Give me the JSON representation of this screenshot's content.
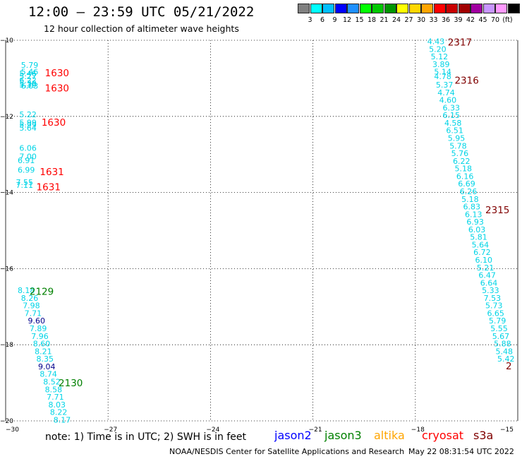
{
  "header": {
    "title": "12:00 – 23:59 UTC 05/21/2022",
    "subtitle": "12 hour collection of altimeter wave heights"
  },
  "colorbar": {
    "labels": [
      "3",
      "6",
      "9",
      "12",
      "15",
      "18",
      "21",
      "24",
      "27",
      "30",
      "33",
      "36",
      "39",
      "42",
      "45",
      "70",
      "(ft)"
    ],
    "colors": [
      "#808080",
      "#00ffff",
      "#00bfff",
      "#0000ff",
      "#1e90ff",
      "#00ff00",
      "#00c800",
      "#009600",
      "#ffff00",
      "#ffd700",
      "#ffa500",
      "#ff0000",
      "#c80000",
      "#a00000",
      "#a000a0",
      "#c896ff",
      "#ff99ff",
      "#000000"
    ]
  },
  "axes": {
    "x_labels": [
      "−30",
      "−27",
      "−24",
      "−21",
      "−18",
      "−15"
    ],
    "y_labels": [
      "−10",
      "−12",
      "−14",
      "−16",
      "−18",
      "−20"
    ]
  },
  "chart_data": {
    "type": "scatter",
    "x_range": [
      -30,
      -15
    ],
    "y_range": [
      -20,
      -10
    ],
    "series": [
      {
        "satellite": "cryosat",
        "color": "#00d4e6",
        "points": [
          {
            "x": -29.55,
            "y": -10.65,
            "v": "5.79"
          },
          {
            "x": -29.55,
            "y": -10.83,
            "v": "5.46"
          },
          {
            "x": -29.6,
            "y": -10.87,
            "v": "5.46"
          },
          {
            "x": -29.6,
            "y": -10.95,
            "v": "5.27"
          },
          {
            "x": -29.6,
            "y": -11.05,
            "v": "6.22"
          },
          {
            "x": -29.6,
            "y": -11.13,
            "v": "5.39"
          },
          {
            "x": -29.6,
            "y": -11.17,
            "v": "5.39"
          },
          {
            "x": -29.55,
            "y": -11.2,
            "v": "6.03"
          },
          {
            "x": -29.6,
            "y": -11.95,
            "v": "5.22"
          },
          {
            "x": -29.6,
            "y": -12.16,
            "v": "5.99"
          },
          {
            "x": -29.6,
            "y": -12.22,
            "v": "5.99"
          },
          {
            "x": -29.6,
            "y": -12.3,
            "v": "5.64"
          },
          {
            "x": -29.6,
            "y": -12.83,
            "v": "6.06"
          },
          {
            "x": -29.6,
            "y": -13.05,
            "v": "7.00"
          },
          {
            "x": -29.65,
            "y": -13.15,
            "v": "6.91"
          },
          {
            "x": -29.65,
            "y": -13.4,
            "v": "6.99"
          },
          {
            "x": -29.7,
            "y": -13.73,
            "v": "7.55"
          },
          {
            "x": -29.7,
            "y": -13.8,
            "v": "7.11"
          }
        ]
      },
      {
        "satellite": "jason3",
        "color": "#00d4e6",
        "points": [
          {
            "x": -29.65,
            "y": -16.57,
            "v": "8.18"
          },
          {
            "x": -29.55,
            "y": -16.77,
            "v": "8.26"
          },
          {
            "x": -29.5,
            "y": -16.97,
            "v": "7.98"
          },
          {
            "x": -29.45,
            "y": -17.17,
            "v": "7.71"
          },
          {
            "x": -29.35,
            "y": -17.37,
            "v": "9.60",
            "color": "#00008b"
          },
          {
            "x": -29.3,
            "y": -17.57,
            "v": "7.89"
          },
          {
            "x": -29.25,
            "y": -17.77,
            "v": "7.96"
          },
          {
            "x": -29.2,
            "y": -17.97,
            "v": "8.60"
          },
          {
            "x": -29.15,
            "y": -18.17,
            "v": "8.21"
          },
          {
            "x": -29.1,
            "y": -18.37,
            "v": "8.35"
          },
          {
            "x": -29.05,
            "y": -18.57,
            "v": "9.04",
            "color": "#00008b"
          },
          {
            "x": -29.0,
            "y": -18.77,
            "v": "8.74"
          },
          {
            "x": -28.9,
            "y": -18.97,
            "v": "8.52"
          },
          {
            "x": -28.85,
            "y": -19.17,
            "v": "8.58"
          },
          {
            "x": -28.8,
            "y": -19.37,
            "v": "7.71"
          },
          {
            "x": -28.75,
            "y": -19.57,
            "v": "8.03"
          },
          {
            "x": -28.7,
            "y": -19.77,
            "v": "8.22"
          },
          {
            "x": -28.6,
            "y": -19.97,
            "v": "8.17"
          }
        ]
      },
      {
        "satellite": "s3a",
        "color": "#00d4e6",
        "points": [
          {
            "x": -17.65,
            "y": -10.03,
            "v": "4.43"
          },
          {
            "x": -17.6,
            "y": -10.23,
            "v": "5.20"
          },
          {
            "x": -17.55,
            "y": -10.43,
            "v": "5.12"
          },
          {
            "x": -17.5,
            "y": -10.63,
            "v": "3.89"
          },
          {
            "x": -17.45,
            "y": -10.83,
            "v": "5.14"
          },
          {
            "x": -17.45,
            "y": -10.95,
            "v": "4.78"
          },
          {
            "x": -17.4,
            "y": -11.17,
            "v": "5.37"
          },
          {
            "x": -17.35,
            "y": -11.37,
            "v": "4.74"
          },
          {
            "x": -17.3,
            "y": -11.57,
            "v": "4.60"
          },
          {
            "x": -17.2,
            "y": -11.77,
            "v": "6.33"
          },
          {
            "x": -17.2,
            "y": -11.97,
            "v": "6.15"
          },
          {
            "x": -17.15,
            "y": -12.17,
            "v": "4.58"
          },
          {
            "x": -17.1,
            "y": -12.37,
            "v": "6.51"
          },
          {
            "x": -17.05,
            "y": -12.57,
            "v": "5.95"
          },
          {
            "x": -17.0,
            "y": -12.77,
            "v": "5.78"
          },
          {
            "x": -16.95,
            "y": -12.97,
            "v": "5.76"
          },
          {
            "x": -16.9,
            "y": -13.17,
            "v": "6.22"
          },
          {
            "x": -16.85,
            "y": -13.37,
            "v": "5.18"
          },
          {
            "x": -16.8,
            "y": -13.57,
            "v": "6.16"
          },
          {
            "x": -16.75,
            "y": -13.77,
            "v": "6.69"
          },
          {
            "x": -16.7,
            "y": -13.97,
            "v": "6.26"
          },
          {
            "x": -16.65,
            "y": -14.17,
            "v": "5.18"
          },
          {
            "x": -16.6,
            "y": -14.37,
            "v": "6.83"
          },
          {
            "x": -16.55,
            "y": -14.57,
            "v": "6.13"
          },
          {
            "x": -16.5,
            "y": -14.77,
            "v": "6.93"
          },
          {
            "x": -16.45,
            "y": -14.97,
            "v": "6.03"
          },
          {
            "x": -16.4,
            "y": -15.17,
            "v": "5.81"
          },
          {
            "x": -16.35,
            "y": -15.37,
            "v": "5.64"
          },
          {
            "x": -16.3,
            "y": -15.57,
            "v": "6.72"
          },
          {
            "x": -16.25,
            "y": -15.77,
            "v": "6.10"
          },
          {
            "x": -16.2,
            "y": -15.97,
            "v": "5.21"
          },
          {
            "x": -16.15,
            "y": -16.17,
            "v": "6.47"
          },
          {
            "x": -16.1,
            "y": -16.37,
            "v": "6.64"
          },
          {
            "x": -16.05,
            "y": -16.57,
            "v": "5.33"
          },
          {
            "x": -16.0,
            "y": -16.77,
            "v": "7.53"
          },
          {
            "x": -15.95,
            "y": -16.97,
            "v": "5.73"
          },
          {
            "x": -15.9,
            "y": -17.17,
            "v": "6.65"
          },
          {
            "x": -15.85,
            "y": -17.37,
            "v": "5.79"
          },
          {
            "x": -15.8,
            "y": -17.57,
            "v": "5.55"
          },
          {
            "x": -15.75,
            "y": -17.77,
            "v": "5.67"
          },
          {
            "x": -15.7,
            "y": -17.97,
            "v": "5.88"
          },
          {
            "x": -15.65,
            "y": -18.17,
            "v": "5.48"
          },
          {
            "x": -15.6,
            "y": -18.37,
            "v": "5.42"
          }
        ]
      }
    ],
    "time_labels": [
      {
        "x": -28.85,
        "y": -10.85,
        "text": "1630",
        "color": "#ff0000"
      },
      {
        "x": -28.85,
        "y": -11.25,
        "text": "1630",
        "color": "#ff0000"
      },
      {
        "x": -28.95,
        "y": -12.15,
        "text": "1630",
        "color": "#ff0000"
      },
      {
        "x": -29.0,
        "y": -13.45,
        "text": "1631",
        "color": "#ff0000"
      },
      {
        "x": -29.1,
        "y": -13.85,
        "text": "1631",
        "color": "#ff0000"
      },
      {
        "x": -29.3,
        "y": -16.6,
        "text": "2129",
        "color": "#008000"
      },
      {
        "x": -28.45,
        "y": -19.0,
        "text": "2130",
        "color": "#008000"
      },
      {
        "x": -17.05,
        "y": -10.05,
        "text": "2317",
        "color": "#800000"
      },
      {
        "x": -16.85,
        "y": -11.05,
        "text": "2316",
        "color": "#800000"
      },
      {
        "x": -15.95,
        "y": -14.45,
        "text": "2315",
        "color": "#800000"
      },
      {
        "x": -15.35,
        "y": -18.55,
        "text": "2",
        "color": "#800000"
      }
    ]
  },
  "legend": {
    "note": "note:  1) Time is in UTC;  2) SWH is in feet",
    "satellites": [
      {
        "name": "jason2",
        "color": "#0000ff"
      },
      {
        "name": "jason3",
        "color": "#008000"
      },
      {
        "name": "altika",
        "color": "#ffa500"
      },
      {
        "name": "cryosat",
        "color": "#ff0000"
      },
      {
        "name": "s3a",
        "color": "#800000"
      }
    ]
  },
  "footer": {
    "credit": "NOAA/NESDIS Center for Satellite Applications and Research",
    "timestamp": "May 22 08:31:54 UTC 2022"
  }
}
